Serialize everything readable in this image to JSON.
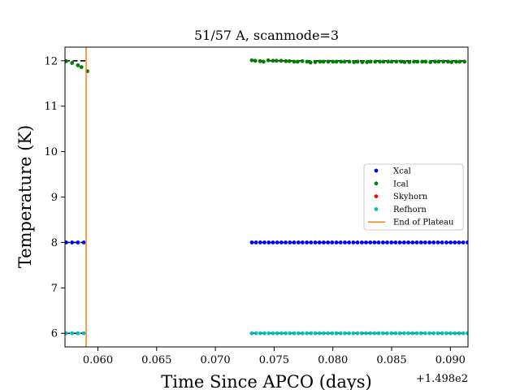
{
  "chart_data": {
    "type": "scatter",
    "title": "51/57 A, scanmode=3",
    "xlabel": "Time Since APCO (days)",
    "ylabel": "Temperature (K)",
    "x_offset_label": "+1.498e2",
    "xlim": [
      0.0572,
      0.0915
    ],
    "ylim": [
      5.7,
      12.3
    ],
    "x_ticks": [
      0.06,
      0.065,
      0.07,
      0.075,
      0.08,
      0.085,
      0.09
    ],
    "x_tick_labels": [
      "0.060",
      "0.065",
      "0.070",
      "0.075",
      "0.080",
      "0.085",
      "0.090"
    ],
    "y_ticks": [
      6,
      7,
      8,
      9,
      10,
      11,
      12
    ],
    "y_tick_labels": [
      "6",
      "7",
      "8",
      "9",
      "10",
      "11",
      "12"
    ],
    "grid": false,
    "legend_position": "center-right",
    "series": [
      {
        "name": "Xcal",
        "color": "#0000ff",
        "points": [
          [
            0.0573,
            8.0
          ],
          [
            0.0578,
            8.0
          ],
          [
            0.0583,
            8.0
          ],
          [
            0.0588,
            8.0
          ],
          {
            "from": 0.0731,
            "to": 0.0915,
            "step": 0.00036,
            "y": 8.0
          }
        ]
      },
      {
        "name": "Ical",
        "color": "#008000",
        "points": [
          [
            0.0573,
            11.99
          ],
          [
            0.0578,
            11.95
          ],
          [
            0.0583,
            11.9
          ],
          [
            0.0586,
            11.86
          ],
          [
            0.0591,
            11.77
          ],
          [
            0.0731,
            12.01
          ],
          [
            0.0734,
            12.0
          ],
          [
            0.0738,
            11.99
          ],
          [
            0.0741,
            11.98
          ],
          [
            0.0745,
            12.01
          ],
          [
            0.0749,
            12.0
          ],
          [
            0.0752,
            12.0
          ],
          [
            0.0756,
            12.0
          ],
          [
            0.076,
            11.99
          ],
          [
            0.0763,
            11.99
          ],
          [
            0.0767,
            11.98
          ],
          [
            0.077,
            11.98
          ],
          [
            0.0774,
            11.99
          ],
          [
            0.0778,
            11.98
          ],
          [
            0.0781,
            11.96
          ],
          [
            0.0785,
            11.97
          ],
          [
            0.0789,
            11.98
          ],
          [
            0.0792,
            11.98
          ],
          [
            0.0796,
            11.98
          ],
          [
            0.08,
            11.98
          ],
          [
            0.0803,
            11.98
          ],
          [
            0.0807,
            11.98
          ],
          [
            0.081,
            11.98
          ],
          [
            0.0814,
            11.98
          ],
          [
            0.0818,
            11.97
          ],
          [
            0.0821,
            11.98
          ],
          [
            0.0825,
            11.97
          ],
          [
            0.0829,
            11.97
          ],
          [
            0.0832,
            11.98
          ],
          [
            0.0836,
            11.98
          ],
          [
            0.084,
            11.98
          ],
          [
            0.0843,
            11.98
          ],
          [
            0.0847,
            11.98
          ],
          [
            0.085,
            11.98
          ],
          [
            0.0854,
            11.98
          ],
          [
            0.0858,
            11.98
          ],
          [
            0.0861,
            11.97
          ],
          [
            0.0865,
            11.97
          ],
          [
            0.0869,
            11.98
          ],
          [
            0.0872,
            11.98
          ],
          [
            0.0876,
            11.98
          ],
          [
            0.0879,
            11.98
          ],
          [
            0.0883,
            11.97
          ],
          [
            0.0887,
            11.98
          ],
          [
            0.089,
            11.98
          ],
          [
            0.0894,
            11.98
          ],
          [
            0.0898,
            11.98
          ],
          [
            0.0901,
            11.97
          ],
          [
            0.0905,
            11.98
          ],
          [
            0.0908,
            11.98
          ],
          [
            0.0912,
            11.98
          ]
        ]
      },
      {
        "name": "Skyhorn",
        "color": "#ff0000",
        "points": []
      },
      {
        "name": "Refhorn",
        "color": "#00bfbf",
        "points": [
          [
            0.0573,
            6.0
          ],
          [
            0.0578,
            6.0
          ],
          [
            0.0583,
            6.0
          ],
          [
            0.0588,
            6.0
          ],
          {
            "from": 0.0731,
            "to": 0.0915,
            "step": 0.00036,
            "y": 6.0
          }
        ]
      }
    ],
    "reference_lines": [
      {
        "type": "hline",
        "y": 12,
        "color": "#000000",
        "style": "dashed",
        "segments": [
          [
            0.0572,
            0.059
          ],
          [
            0.0731,
            0.0915
          ]
        ]
      },
      {
        "type": "hline",
        "y": 8,
        "color": "#000000",
        "style": "dashed",
        "segments": [
          [
            0.0572,
            0.059
          ],
          [
            0.0731,
            0.0915
          ]
        ]
      },
      {
        "type": "hline",
        "y": 6,
        "color": "#000000",
        "style": "dashed",
        "segments": [
          [
            0.0572,
            0.059
          ],
          [
            0.0731,
            0.0915
          ]
        ]
      }
    ],
    "vlines": [
      {
        "name": "End of Plateau",
        "x": 0.059,
        "color": "#ff7f0e"
      }
    ]
  }
}
